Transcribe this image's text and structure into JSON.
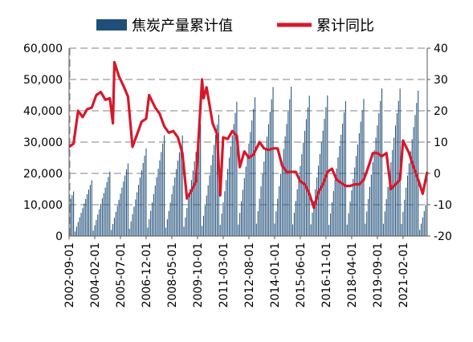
{
  "chart_data": {
    "type": "bar+line",
    "legend": {
      "position": "top",
      "entries": [
        {
          "name": "焦炭产量累计值",
          "kind": "bar",
          "color": "#1F4E79"
        },
        {
          "name": "累计同比",
          "kind": "line",
          "color": "#D7182A"
        }
      ]
    },
    "left_axis": {
      "min": 0,
      "max": 60000,
      "ticks": [
        "0",
        "10,000",
        "20,000",
        "30,000",
        "40,000",
        "50,000",
        "60,000"
      ]
    },
    "right_axis": {
      "min": -20,
      "max": 40,
      "ticks": [
        "-20",
        "-10",
        "0",
        "10",
        "20",
        "30",
        "40"
      ]
    },
    "grid": "dashed horizontal",
    "x_axis": {
      "start": "2002-09",
      "end": "2022-06",
      "tick_labels": [
        "2002-09-01",
        "2004-02-01",
        "2005-07-01",
        "2006-12-01",
        "2008-05-01",
        "2009-10-01",
        "2011-03-01",
        "2012-08-01",
        "2014-01-01",
        "2015-06-01",
        "2016-11-01",
        "2018-04-01",
        "2019-09-01",
        "2021-02-01"
      ]
    },
    "bar_series": {
      "name": "焦炭产量累计值",
      "annual_totals": [
        {
          "year": 2002,
          "value": 14200
        },
        {
          "year": 2003,
          "value": 17800
        },
        {
          "year": 2004,
          "value": 20600
        },
        {
          "year": 2005,
          "value": 23200
        },
        {
          "year": 2006,
          "value": 28000
        },
        {
          "year": 2007,
          "value": 32200
        },
        {
          "year": 2008,
          "value": 32100
        },
        {
          "year": 2009,
          "value": 35800
        },
        {
          "year": 2010,
          "value": 38800
        },
        {
          "year": 2011,
          "value": 42900
        },
        {
          "year": 2012,
          "value": 44300
        },
        {
          "year": 2013,
          "value": 47600
        },
        {
          "year": 2014,
          "value": 47700
        },
        {
          "year": 2015,
          "value": 44800
        },
        {
          "year": 2016,
          "value": 44900
        },
        {
          "year": 2017,
          "value": 43100
        },
        {
          "year": 2018,
          "value": 43800
        },
        {
          "year": 2019,
          "value": 47100
        },
        {
          "year": 2020,
          "value": 47100
        },
        {
          "year": 2021,
          "value": 46400
        },
        {
          "year": 2022,
          "value": 23800
        }
      ]
    },
    "line_series": {
      "name": "累计同比",
      "points": [
        [
          "2002-09",
          8.5
        ],
        [
          "2002-12",
          9.5
        ],
        [
          "2003-03",
          20.0
        ],
        [
          "2003-06",
          18.0
        ],
        [
          "2003-09",
          20.5
        ],
        [
          "2003-12",
          21.0
        ],
        [
          "2004-03",
          25.0
        ],
        [
          "2004-06",
          26.0
        ],
        [
          "2004-09",
          23.5
        ],
        [
          "2004-12",
          24.0
        ],
        [
          "2005-02",
          16.0
        ],
        [
          "2005-03",
          35.5
        ],
        [
          "2005-06",
          31.0
        ],
        [
          "2005-09",
          28.0
        ],
        [
          "2005-12",
          24.5
        ],
        [
          "2006-03",
          8.5
        ],
        [
          "2006-06",
          12.5
        ],
        [
          "2006-09",
          16.5
        ],
        [
          "2006-12",
          17.5
        ],
        [
          "2007-02",
          25.0
        ],
        [
          "2007-06",
          21.0
        ],
        [
          "2007-09",
          19.0
        ],
        [
          "2007-12",
          15.0
        ],
        [
          "2008-03",
          13.0
        ],
        [
          "2008-06",
          13.5
        ],
        [
          "2008-09",
          11.5
        ],
        [
          "2008-12",
          6.5
        ],
        [
          "2009-03",
          -8.0
        ],
        [
          "2009-06",
          -5.5
        ],
        [
          "2009-09",
          -2.5
        ],
        [
          "2010-01",
          30.0
        ],
        [
          "2010-02",
          24.0
        ],
        [
          "2010-04",
          27.5
        ],
        [
          "2010-08",
          16.0
        ],
        [
          "2010-11",
          12.5
        ],
        [
          "2011-01",
          -7.0
        ],
        [
          "2011-03",
          11.5
        ],
        [
          "2011-06",
          11.0
        ],
        [
          "2011-09",
          13.5
        ],
        [
          "2011-12",
          12.0
        ],
        [
          "2012-02",
          2.0
        ],
        [
          "2012-05",
          7.0
        ],
        [
          "2012-08",
          5.0
        ],
        [
          "2012-11",
          6.0
        ],
        [
          "2013-03",
          10.0
        ],
        [
          "2013-06",
          8.0
        ],
        [
          "2013-09",
          7.5
        ],
        [
          "2013-12",
          8.0
        ],
        [
          "2014-03",
          8.0
        ],
        [
          "2014-06",
          2.5
        ],
        [
          "2014-09",
          0.5
        ],
        [
          "2014-12",
          0.5
        ],
        [
          "2015-03",
          0.5
        ],
        [
          "2015-06",
          -2.5
        ],
        [
          "2015-09",
          -3.5
        ],
        [
          "2015-12",
          -6.5
        ],
        [
          "2016-03",
          -11.0
        ],
        [
          "2016-06",
          -6.0
        ],
        [
          "2016-09",
          -3.5
        ],
        [
          "2016-12",
          0.5
        ],
        [
          "2017-03",
          1.5
        ],
        [
          "2017-06",
          -2.0
        ],
        [
          "2017-09",
          -3.0
        ],
        [
          "2017-12",
          -4.0
        ],
        [
          "2018-03",
          -4.0
        ],
        [
          "2018-06",
          -3.5
        ],
        [
          "2018-09",
          -3.5
        ],
        [
          "2018-12",
          -2.0
        ],
        [
          "2019-03",
          2.0
        ],
        [
          "2019-06",
          6.5
        ],
        [
          "2019-09",
          6.5
        ],
        [
          "2019-12",
          5.5
        ],
        [
          "2020-03",
          6.5
        ],
        [
          "2020-06",
          -5.0
        ],
        [
          "2020-09",
          -3.5
        ],
        [
          "2020-12",
          -2.0
        ],
        [
          "2021-02",
          10.5
        ],
        [
          "2021-06",
          6.5
        ],
        [
          "2021-09",
          2.0
        ],
        [
          "2021-12",
          -2.0
        ],
        [
          "2022-03",
          -6.5
        ],
        [
          "2022-06",
          0.5
        ]
      ]
    }
  }
}
